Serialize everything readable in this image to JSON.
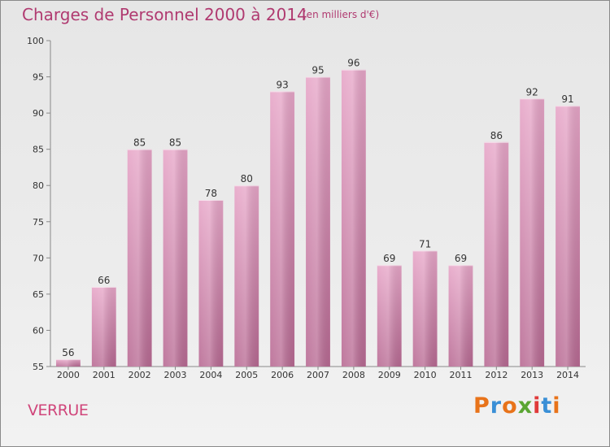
{
  "header": {
    "title": "Charges de Personnel 2000 à 2014",
    "subtitle": "(en milliers d'€)"
  },
  "footer": {
    "place": "VERRUE",
    "logo": {
      "text": "Proxiti",
      "letter_colors": [
        "#e8731a",
        "#3a8fd6",
        "#e8731a",
        "#5aa532",
        "#e03a3a",
        "#3a8fd6",
        "#e8731a"
      ]
    }
  },
  "chart_data": {
    "type": "bar",
    "title": "Charges de Personnel 2000 à 2014",
    "subtitle": "(en milliers d'€)",
    "xlabel": "",
    "ylabel": "",
    "categories": [
      "2000",
      "2001",
      "2002",
      "2003",
      "2004",
      "2005",
      "2006",
      "2007",
      "2008",
      "2009",
      "2010",
      "2011",
      "2012",
      "2013",
      "2014"
    ],
    "values": [
      56,
      66,
      85,
      85,
      78,
      80,
      93,
      95,
      96,
      69,
      71,
      69,
      86,
      92,
      91
    ],
    "ylim": [
      55,
      100
    ],
    "yticks": [
      55,
      60,
      65,
      70,
      75,
      80,
      85,
      90,
      95,
      100
    ],
    "grid": false,
    "legend": "none",
    "bar_color": "#cf7faa"
  }
}
